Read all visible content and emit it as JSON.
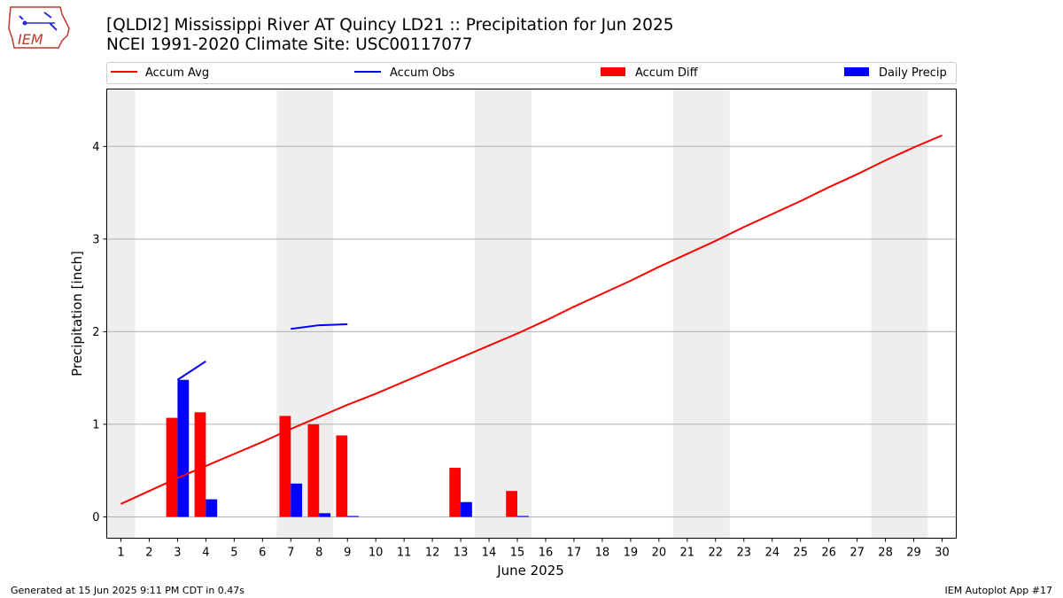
{
  "title_line1": "[QLDI2] Mississippi River  AT Quincy LD21 :: Precipitation for Jun 2025",
  "title_line2": "NCEI 1991-2020 Climate Site: USC00117077",
  "logo_text": "IEM",
  "footer_left": "Generated at 15 Jun 2025 9:11 PM CDT in 0.47s",
  "footer_right": "IEM Autoplot App #17",
  "colors": {
    "avg": "#ff0000",
    "obs": "#0000ff",
    "diff": "#ff0000",
    "daily": "#0000ff",
    "weekend": "#eeeeee",
    "grid": "#b0b0b0"
  },
  "chart_data": {
    "type": "bar",
    "xlabel": "June 2025",
    "ylabel": "Precipitation [inch]",
    "xlim": [
      0.5,
      30.5
    ],
    "ylim": [
      -0.23,
      4.62
    ],
    "x_ticks": [
      1,
      2,
      3,
      4,
      5,
      6,
      7,
      8,
      9,
      10,
      11,
      12,
      13,
      14,
      15,
      16,
      17,
      18,
      19,
      20,
      21,
      22,
      23,
      24,
      25,
      26,
      27,
      28,
      29,
      30
    ],
    "y_ticks": [
      0,
      1,
      2,
      3,
      4
    ],
    "grid": "horizontal",
    "legend_position": "top",
    "weekend_bands": [
      [
        0.5,
        1.5
      ],
      [
        6.5,
        8.5
      ],
      [
        13.5,
        15.5
      ],
      [
        20.5,
        22.5
      ],
      [
        27.5,
        29.5
      ]
    ],
    "series": [
      {
        "name": "Accum Avg",
        "kind": "line",
        "x": [
          1,
          2,
          3,
          4,
          5,
          6,
          7,
          8,
          9,
          10,
          11,
          12,
          13,
          14,
          15,
          16,
          17,
          18,
          19,
          20,
          21,
          22,
          23,
          24,
          25,
          26,
          27,
          28,
          29,
          30
        ],
        "values": [
          0.14,
          0.28,
          0.42,
          0.55,
          0.68,
          0.81,
          0.95,
          1.08,
          1.21,
          1.33,
          1.46,
          1.59,
          1.72,
          1.85,
          1.98,
          2.12,
          2.27,
          2.41,
          2.55,
          2.7,
          2.84,
          2.98,
          3.13,
          3.27,
          3.41,
          3.56,
          3.7,
          3.85,
          3.99,
          4.12
        ]
      },
      {
        "name": "Accum Obs",
        "kind": "line",
        "segments": [
          {
            "x": [
              3,
              4
            ],
            "values": [
              1.48,
              1.68
            ]
          },
          {
            "x": [
              7,
              8,
              9
            ],
            "values": [
              2.03,
              2.07,
              2.08
            ]
          }
        ]
      },
      {
        "name": "Accum Diff",
        "kind": "bar",
        "x": [
          3,
          4,
          7,
          8,
          9,
          13,
          15
        ],
        "values": [
          1.07,
          1.13,
          1.09,
          1.0,
          0.88,
          0.53,
          0.28
        ]
      },
      {
        "name": "Daily Precip",
        "kind": "bar",
        "x": [
          3,
          4,
          7,
          8,
          9,
          13,
          15
        ],
        "values": [
          1.48,
          0.19,
          0.36,
          0.04,
          0.01,
          0.16,
          0.01
        ]
      }
    ]
  }
}
